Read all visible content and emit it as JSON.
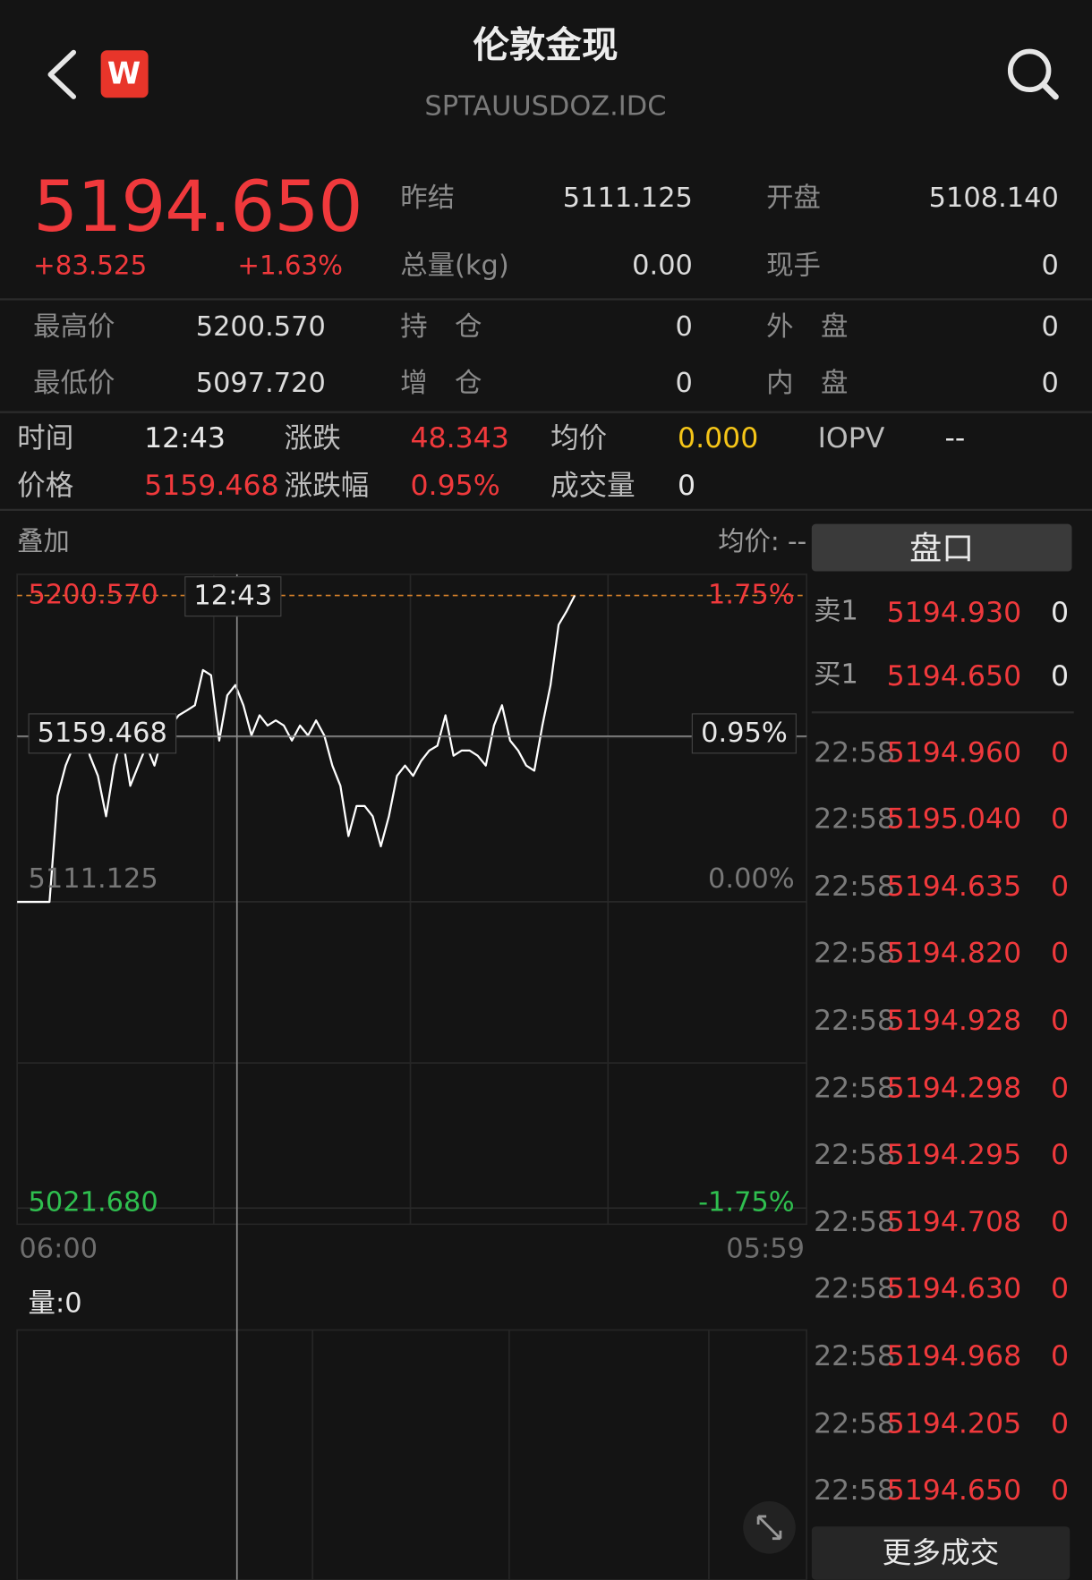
{
  "header": {
    "logo": "W",
    "title": "伦敦金现",
    "code": "SPTAUUSDOZ.IDC"
  },
  "quote": {
    "price": "5194.650",
    "change": "+83.525",
    "change_pct": "+1.63%"
  },
  "stats": [
    {
      "label": "昨结",
      "value": "5111.125"
    },
    {
      "label": "开盘",
      "value": "5108.140"
    },
    {
      "label": "总量(kg)",
      "value": "0.00"
    },
    {
      "label": "现手",
      "value": "0"
    },
    {
      "label": "最高价",
      "value": "5200.570"
    },
    {
      "label": "持　仓",
      "value": "0"
    },
    {
      "label": "外　盘",
      "value": "0"
    },
    {
      "label": "最低价",
      "value": "5097.720"
    },
    {
      "label": "增　仓",
      "value": "0"
    },
    {
      "label": "内　盘",
      "value": "0"
    }
  ],
  "info": [
    {
      "label": "时间",
      "value": "12:43"
    },
    {
      "label": "涨跌",
      "value": "48.343"
    },
    {
      "label": "均价",
      "value": "0.000"
    },
    {
      "label": "IOPV",
      "value": "--"
    },
    {
      "label": "价格",
      "value": "5159.468"
    },
    {
      "label": "涨跌幅",
      "value": "0.95%"
    },
    {
      "label": "成交量",
      "value": "0"
    }
  ],
  "chart": {
    "type": "line",
    "overlay": "叠加",
    "avg_label": "均价: --",
    "color": "#ffffff",
    "ylim": [
      5016.97,
      5206.75
    ],
    "yticks": [
      {
        "value": 5200.57,
        "label": "5200.570"
      },
      {
        "value": 5111.125,
        "label": "5111.125"
      },
      {
        "value": 5021.68,
        "label": "5021.680"
      }
    ],
    "pct_labels": [
      "1.75%",
      "0.00%",
      "-1.75%"
    ],
    "x_labels": [
      "06:00",
      "05:59"
    ],
    "cursor": {
      "time": "12:43",
      "value": 5159.468,
      "label": "5159.468",
      "pct": "0.95%"
    },
    "volume_label": "量:0",
    "values": [
      5111.1,
      5111.1,
      5111.1,
      5111.1,
      5111.1,
      5142.0,
      5150.9,
      5156.7,
      5162.6,
      5153.8,
      5147.9,
      5136.1,
      5150.9,
      5159.7,
      5145.0,
      5150.9,
      5156.7,
      5150.9,
      5159.7,
      5162.6,
      5165.6,
      5167.0,
      5168.5,
      5178.8,
      5177.3,
      5158.2,
      5171.4,
      5174.4,
      5168.5,
      5159.7,
      5165.6,
      5162.6,
      5164.1,
      5162.6,
      5158.2,
      5162.6,
      5159.7,
      5164.1,
      5159.7,
      5150.9,
      5145.0,
      5130.3,
      5139.1,
      5139.1,
      5136.1,
      5127.3,
      5136.1,
      5147.9,
      5150.9,
      5147.9,
      5152.3,
      5155.3,
      5156.7,
      5165.6,
      5153.8,
      5155.3,
      5155.3,
      5153.8,
      5150.9,
      5162.6,
      5168.5,
      5158.2,
      5155.3,
      5150.9,
      5149.4,
      5162.6,
      5174.4,
      5192.0,
      5196.0,
      5200.57
    ]
  },
  "orderbook": {
    "title": "盘口",
    "rows": [
      {
        "label": "卖1",
        "price": "5194.930",
        "volume": "0"
      },
      {
        "label": "买1",
        "price": "5194.650",
        "volume": "0"
      }
    ]
  },
  "trades": {
    "rows": [
      {
        "time": "22:58",
        "price": "5194.960",
        "volume": "0"
      },
      {
        "time": "22:58",
        "price": "5195.040",
        "volume": "0"
      },
      {
        "time": "22:58",
        "price": "5194.635",
        "volume": "0"
      },
      {
        "time": "22:58",
        "price": "5194.820",
        "volume": "0"
      },
      {
        "time": "22:58",
        "price": "5194.928",
        "volume": "0"
      },
      {
        "time": "22:58",
        "price": "5194.298",
        "volume": "0"
      },
      {
        "time": "22:58",
        "price": "5194.295",
        "volume": "0"
      },
      {
        "time": "22:58",
        "price": "5194.708",
        "volume": "0"
      },
      {
        "time": "22:58",
        "price": "5194.630",
        "volume": "0"
      },
      {
        "time": "22:58",
        "price": "5194.968",
        "volume": "0"
      },
      {
        "time": "22:58",
        "price": "5194.205",
        "volume": "0"
      },
      {
        "time": "22:58",
        "price": "5194.650",
        "volume": "0"
      }
    ],
    "more": "更多成交"
  }
}
